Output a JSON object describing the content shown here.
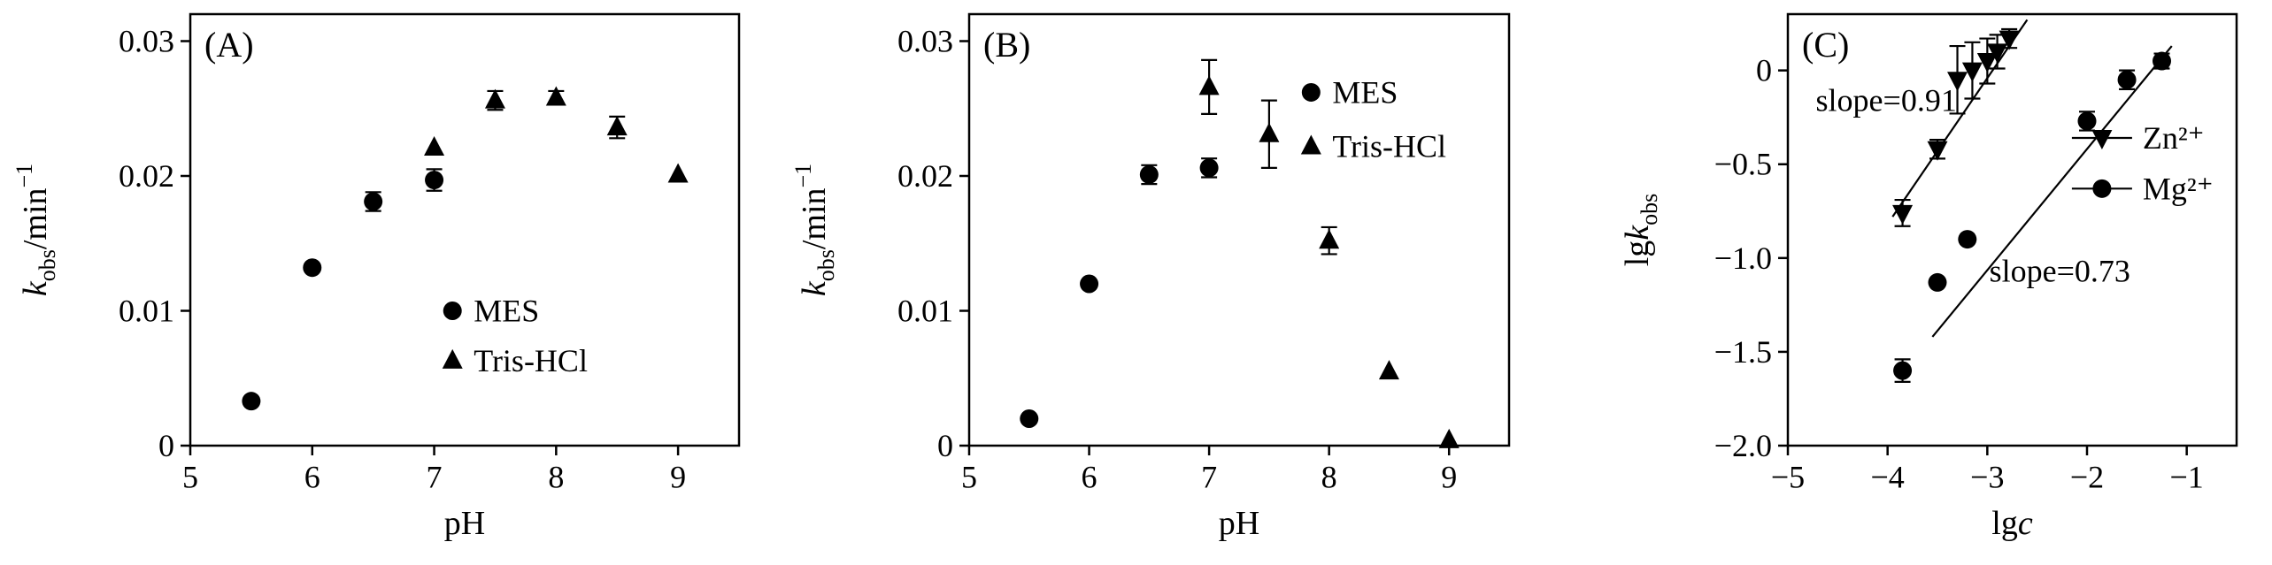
{
  "figure": {
    "background": "#ffffff",
    "ink_color": "#000000"
  },
  "chart_data": [
    {
      "id": "A",
      "panel_label": "(A)",
      "type": "scatter",
      "xlabel": [
        {
          "t": "pH",
          "s": ""
        }
      ],
      "ylabel": [
        {
          "t": "k",
          "s": "i"
        },
        {
          "t": "obs",
          "s": "sub"
        },
        {
          "t": "/min",
          "s": ""
        },
        {
          "t": "−1",
          "s": "sup"
        }
      ],
      "xlim": [
        5,
        9.5
      ],
      "ylim": [
        0,
        0.032
      ],
      "grid": false,
      "legend_position": "center-right-inside",
      "xticks": [
        {
          "v": 5,
          "l": "5"
        },
        {
          "v": 6,
          "l": "6"
        },
        {
          "v": 7,
          "l": "7"
        },
        {
          "v": 8,
          "l": "8"
        },
        {
          "v": 9,
          "l": "9"
        }
      ],
      "yticks": [
        {
          "v": 0,
          "l": "0"
        },
        {
          "v": 0.01,
          "l": "0.01"
        },
        {
          "v": 0.02,
          "l": "0.02"
        },
        {
          "v": 0.03,
          "l": "0.03"
        }
      ],
      "series": [
        {
          "name": "MES",
          "marker": "circle",
          "points": [
            {
              "x": 5.5,
              "y": 0.0033,
              "e": 0
            },
            {
              "x": 6.0,
              "y": 0.0132,
              "e": 0
            },
            {
              "x": 6.5,
              "y": 0.0181,
              "e": 0.0007
            },
            {
              "x": 7.0,
              "y": 0.0197,
              "e": 0.0008
            }
          ]
        },
        {
          "name": "Tris-HCl",
          "marker": "triangle-up",
          "points": [
            {
              "x": 7.0,
              "y": 0.0221,
              "e": 0
            },
            {
              "x": 7.5,
              "y": 0.0256,
              "e": 0.0007
            },
            {
              "x": 8.0,
              "y": 0.0258,
              "e": 0.0005
            },
            {
              "x": 8.5,
              "y": 0.0236,
              "e": 0.0008
            },
            {
              "x": 9.0,
              "y": 0.0201,
              "e": 0
            }
          ]
        }
      ],
      "legend": {
        "x": 7.15,
        "entries": [
          {
            "marker": "circle",
            "label": "MES",
            "y": 0.01,
            "line": false
          },
          {
            "marker": "triangle-up",
            "label": "Tris-HCl",
            "y": 0.0063,
            "line": false
          }
        ]
      },
      "fit_lines": [],
      "annotations": []
    },
    {
      "id": "B",
      "panel_label": "(B)",
      "type": "scatter",
      "xlabel": [
        {
          "t": "pH",
          "s": ""
        }
      ],
      "ylabel": [
        {
          "t": "k",
          "s": "i"
        },
        {
          "t": "obs",
          "s": "sub"
        },
        {
          "t": "/min",
          "s": ""
        },
        {
          "t": "−1",
          "s": "sup"
        }
      ],
      "xlim": [
        5,
        9.5
      ],
      "ylim": [
        0,
        0.032
      ],
      "grid": false,
      "legend_position": "top-right-inside",
      "xticks": [
        {
          "v": 5,
          "l": "5"
        },
        {
          "v": 6,
          "l": "6"
        },
        {
          "v": 7,
          "l": "7"
        },
        {
          "v": 8,
          "l": "8"
        },
        {
          "v": 9,
          "l": "9"
        }
      ],
      "yticks": [
        {
          "v": 0,
          "l": "0"
        },
        {
          "v": 0.01,
          "l": "0.01"
        },
        {
          "v": 0.02,
          "l": "0.02"
        },
        {
          "v": 0.03,
          "l": "0.03"
        }
      ],
      "series": [
        {
          "name": "MES",
          "marker": "circle",
          "points": [
            {
              "x": 5.5,
              "y": 0.002,
              "e": 0
            },
            {
              "x": 6.0,
              "y": 0.012,
              "e": 0
            },
            {
              "x": 6.5,
              "y": 0.0201,
              "e": 0.0007
            },
            {
              "x": 7.0,
              "y": 0.0206,
              "e": 0.0007
            }
          ]
        },
        {
          "name": "Tris-HCl",
          "marker": "triangle-up",
          "points": [
            {
              "x": 7.0,
              "y": 0.0266,
              "e": 0.002
            },
            {
              "x": 7.5,
              "y": 0.0231,
              "e": 0.0025
            },
            {
              "x": 8.0,
              "y": 0.0152,
              "e": 0.001
            },
            {
              "x": 8.5,
              "y": 0.0055,
              "e": 0
            },
            {
              "x": 9.0,
              "y": 0.0004,
              "e": 0
            }
          ]
        }
      ],
      "legend": {
        "x": 7.85,
        "entries": [
          {
            "marker": "circle",
            "label": "MES",
            "y": 0.0262,
            "line": false
          },
          {
            "marker": "triangle-up",
            "label": "Tris-HCl",
            "y": 0.0222,
            "line": false
          }
        ]
      },
      "fit_lines": [],
      "annotations": []
    },
    {
      "id": "C",
      "panel_label": "(C)",
      "type": "scatter",
      "xlabel": [
        {
          "t": "lg",
          "s": ""
        },
        {
          "t": "c",
          "s": "i"
        }
      ],
      "ylabel": [
        {
          "t": "lg",
          "s": ""
        },
        {
          "t": "k",
          "s": "i"
        },
        {
          "t": "obs",
          "s": "sub"
        }
      ],
      "xlim": [
        -5,
        -0.5
      ],
      "ylim": [
        -2.0,
        0.3
      ],
      "grid": false,
      "legend_position": "center-right-inside",
      "xticks": [
        {
          "v": -5,
          "l": "−5"
        },
        {
          "v": -4,
          "l": "−4"
        },
        {
          "v": -3,
          "l": "−3"
        },
        {
          "v": -2,
          "l": "−2"
        },
        {
          "v": -1,
          "l": "−1"
        }
      ],
      "yticks": [
        {
          "v": 0,
          "l": "0"
        },
        {
          "v": -0.5,
          "l": "−0.5"
        },
        {
          "v": -1.0,
          "l": "−1.0"
        },
        {
          "v": -1.5,
          "l": "−1.5"
        },
        {
          "v": -2.0,
          "l": "−2.0"
        }
      ],
      "series": [
        {
          "name": "Zn²⁺",
          "marker": "triangle-down",
          "points": [
            {
              "x": -3.85,
              "y": -0.76,
              "e": 0.07
            },
            {
              "x": -3.5,
              "y": -0.42,
              "e": 0.05
            },
            {
              "x": -3.3,
              "y": -0.05,
              "e": 0.18
            },
            {
              "x": -3.15,
              "y": 0.0,
              "e": 0.15
            },
            {
              "x": -3.0,
              "y": 0.05,
              "e": 0.12
            },
            {
              "x": -2.9,
              "y": 0.1,
              "e": 0.09
            },
            {
              "x": -2.78,
              "y": 0.17,
              "e": 0.05
            }
          ]
        },
        {
          "name": "Mg²⁺",
          "marker": "circle",
          "points": [
            {
              "x": -3.85,
              "y": -1.6,
              "e": 0.06
            },
            {
              "x": -3.5,
              "y": -1.13,
              "e": 0
            },
            {
              "x": -3.2,
              "y": -0.9,
              "e": 0
            },
            {
              "x": -2.0,
              "y": -0.27,
              "e": 0.05
            },
            {
              "x": -1.6,
              "y": -0.05,
              "e": 0.05
            },
            {
              "x": -1.25,
              "y": 0.05,
              "e": 0.04
            }
          ]
        }
      ],
      "legend": {
        "x": -1.85,
        "entries": [
          {
            "marker": "triangle-down",
            "label": "Zn²⁺",
            "y": -0.36,
            "line": true
          },
          {
            "marker": "circle",
            "label": "Mg²⁺",
            "y": -0.63,
            "line": true
          }
        ]
      },
      "fit_lines": [
        {
          "x1": -3.95,
          "y1": -0.78,
          "x2": -2.6,
          "y2": 0.27,
          "label": "slope=0.91"
        },
        {
          "x1": -3.55,
          "y1": -1.42,
          "x2": -1.15,
          "y2": 0.13,
          "label": "slope=0.73"
        }
      ],
      "annotations": [
        {
          "text": "slope=0.91",
          "x": -4.72,
          "y": -0.16
        },
        {
          "text": "slope=0.73",
          "x": -2.98,
          "y": -1.07
        }
      ]
    }
  ]
}
